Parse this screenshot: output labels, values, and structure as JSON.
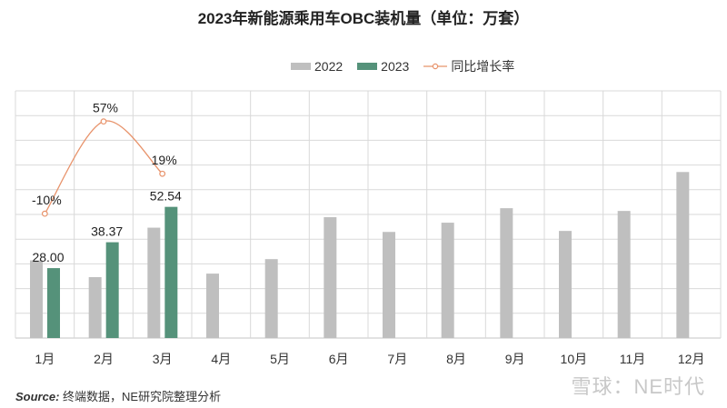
{
  "title": "2023年新能源乘用车OBC装机量（单位：万套）",
  "legend": {
    "items": [
      {
        "label": "2022",
        "color": "#bfbfbf",
        "kind": "bar"
      },
      {
        "label": "2023",
        "color": "#55927a",
        "kind": "bar"
      },
      {
        "label": "同比增长率",
        "color": "#e8936b",
        "kind": "line"
      }
    ]
  },
  "source": {
    "prefix": "Source:",
    "text": " 终端数据，NE研究院整理分析"
  },
  "watermark": "雪球：NE时代",
  "colors": {
    "bar_2022": "#bfbfbf",
    "bar_2023": "#55927a",
    "growth_line": "#e8936b",
    "grid": "#d9d9d9"
  },
  "chart_data": {
    "type": "bar",
    "title": "2023年新能源乘用车OBC装机量（单位：万套）",
    "xlabel": "",
    "ylabel": "万套",
    "categories": [
      "1月",
      "2月",
      "3月",
      "4月",
      "5月",
      "6月",
      "7月",
      "8月",
      "9月",
      "10月",
      "11月",
      "12月"
    ],
    "series": [
      {
        "name": "2022",
        "type": "bar",
        "values": [
          31.1,
          24.4,
          44.2,
          25.8,
          31.6,
          48.4,
          42.5,
          46.2,
          52.0,
          42.9,
          50.9,
          66.5
        ]
      },
      {
        "name": "2023",
        "type": "bar",
        "values": [
          28.0,
          38.37,
          52.54,
          null,
          null,
          null,
          null,
          null,
          null,
          null,
          null,
          null
        ],
        "labels": [
          "28.00",
          "38.37",
          "52.54"
        ]
      },
      {
        "name": "同比增长率",
        "type": "line",
        "axis": "secondary",
        "values": [
          -10,
          57,
          19,
          null,
          null,
          null,
          null,
          null,
          null,
          null,
          null,
          null
        ],
        "labels": [
          "-10%",
          "57%",
          "19%"
        ]
      }
    ],
    "ylim": [
      0,
      99
    ],
    "grid": true,
    "gridlines_horizontal": 10,
    "legend_position": "top"
  }
}
